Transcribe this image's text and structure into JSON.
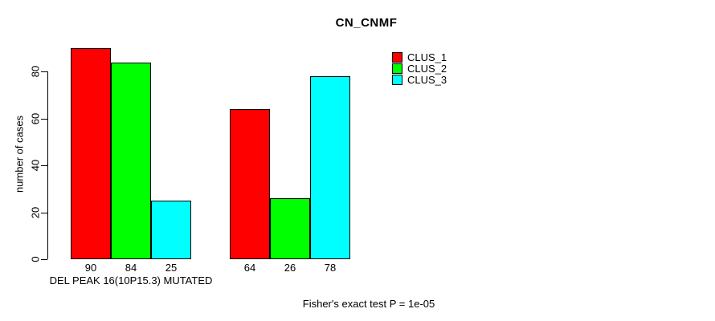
{
  "chart_data": {
    "type": "bar",
    "title": "CN_CNMF",
    "ylabel": "number of cases",
    "xlabel": "DEL PEAK 16(10P15.3) MUTATED",
    "ylim": [
      0,
      90
    ],
    "yticks": [
      0,
      20,
      40,
      60,
      80
    ],
    "grid": false,
    "groups": 2,
    "series": [
      {
        "name": "CLUS_1",
        "color": "#FF0000",
        "values": [
          90,
          64
        ]
      },
      {
        "name": "CLUS_2",
        "color": "#00FF00",
        "values": [
          84,
          26
        ]
      },
      {
        "name": "CLUS_3",
        "color": "#00FFFF",
        "values": [
          25,
          78
        ]
      }
    ],
    "bar_value_labels": [
      90,
      84,
      25,
      64,
      26,
      78
    ],
    "legend": {
      "position": "top-right-of-plot",
      "entries": [
        "CLUS_1",
        "CLUS_2",
        "CLUS_3"
      ]
    },
    "footnote": "Fisher's exact test P = 1e-05"
  }
}
